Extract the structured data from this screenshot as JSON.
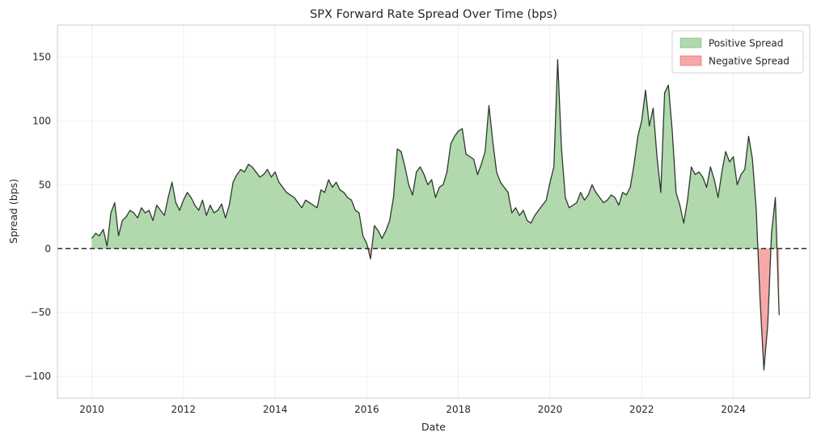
{
  "chart_data": {
    "type": "area",
    "title": "SPX Forward Rate Spread Over Time (bps)",
    "xlabel": "Date",
    "ylabel": "Spread (bps)",
    "xlim": [
      "2009-04",
      "2025-09"
    ],
    "ylim": [
      -117,
      175
    ],
    "x_ticks": [
      "2010",
      "2012",
      "2014",
      "2016",
      "2018",
      "2020",
      "2022",
      "2024"
    ],
    "y_ticks": [
      -100,
      -50,
      0,
      50,
      100,
      150
    ],
    "grid": true,
    "zero_line": {
      "value": 0,
      "style": "dashed"
    },
    "legend": {
      "position": "top-right",
      "entries": [
        {
          "label": "Positive Spread",
          "color": "#2ca02c"
        },
        {
          "label": "Negative Spread",
          "color": "#ff0000"
        }
      ]
    },
    "colors": {
      "line": "#2b3a2b",
      "positive_fill": "#b2d8ad",
      "negative_fill": "#f7a8a8"
    },
    "series": [
      {
        "x": [
          "2010-01",
          "2010-02",
          "2010-03",
          "2010-04",
          "2010-05",
          "2010-06",
          "2010-07",
          "2010-08",
          "2010-09",
          "2010-10",
          "2010-11",
          "2010-12",
          "2011-01",
          "2011-02",
          "2011-03",
          "2011-04",
          "2011-05",
          "2011-06",
          "2011-07",
          "2011-08",
          "2011-09",
          "2011-10",
          "2011-11",
          "2011-12",
          "2012-01",
          "2012-02",
          "2012-03",
          "2012-04",
          "2012-05",
          "2012-06",
          "2012-07",
          "2012-08",
          "2012-09",
          "2012-10",
          "2012-11",
          "2012-12",
          "2013-01",
          "2013-02",
          "2013-03",
          "2013-04",
          "2013-05",
          "2013-06",
          "2013-07",
          "2013-08",
          "2013-09",
          "2013-10",
          "2013-11",
          "2013-12",
          "2014-01",
          "2014-02",
          "2014-03",
          "2014-04",
          "2014-05",
          "2014-06",
          "2014-07",
          "2014-08",
          "2014-09",
          "2014-10",
          "2014-11",
          "2014-12",
          "2015-01",
          "2015-02",
          "2015-03",
          "2015-04",
          "2015-05",
          "2015-06",
          "2015-07",
          "2015-08",
          "2015-09",
          "2015-10",
          "2015-11",
          "2015-12",
          "2016-01",
          "2016-02",
          "2016-03",
          "2016-04",
          "2016-05",
          "2016-06",
          "2016-07",
          "2016-08",
          "2016-09",
          "2016-10",
          "2016-11",
          "2016-12",
          "2017-01",
          "2017-02",
          "2017-03",
          "2017-04",
          "2017-05",
          "2017-06",
          "2017-07",
          "2017-08",
          "2017-09",
          "2017-10",
          "2017-11",
          "2017-12",
          "2018-01",
          "2018-02",
          "2018-03",
          "2018-04",
          "2018-05",
          "2018-06",
          "2018-07",
          "2018-08",
          "2018-09",
          "2018-10",
          "2018-11",
          "2018-12",
          "2019-01",
          "2019-02",
          "2019-03",
          "2019-04",
          "2019-05",
          "2019-06",
          "2019-07",
          "2019-08",
          "2019-09",
          "2019-10",
          "2019-11",
          "2019-12",
          "2020-01",
          "2020-02",
          "2020-03",
          "2020-04",
          "2020-05",
          "2020-06",
          "2020-07",
          "2020-08",
          "2020-09",
          "2020-10",
          "2020-11",
          "2020-12",
          "2021-01",
          "2021-02",
          "2021-03",
          "2021-04",
          "2021-05",
          "2021-06",
          "2021-07",
          "2021-08",
          "2021-09",
          "2021-10",
          "2021-11",
          "2021-12",
          "2022-01",
          "2022-02",
          "2022-03",
          "2022-04",
          "2022-05",
          "2022-06",
          "2022-07",
          "2022-08",
          "2022-09",
          "2022-10",
          "2022-11",
          "2022-12",
          "2023-01",
          "2023-02",
          "2023-03",
          "2023-04",
          "2023-05",
          "2023-06",
          "2023-07",
          "2023-08",
          "2023-09",
          "2023-10",
          "2023-11",
          "2023-12",
          "2024-01",
          "2024-02",
          "2024-03",
          "2024-04",
          "2024-05",
          "2024-06",
          "2024-07",
          "2024-08",
          "2024-09",
          "2024-10",
          "2024-11",
          "2024-12",
          "2025-01"
        ],
        "y": [
          8,
          12,
          10,
          15,
          2,
          28,
          36,
          10,
          22,
          25,
          30,
          28,
          24,
          32,
          28,
          30,
          22,
          34,
          30,
          26,
          40,
          52,
          36,
          30,
          38,
          44,
          40,
          34,
          30,
          38,
          26,
          34,
          28,
          30,
          35,
          24,
          34,
          52,
          58,
          62,
          60,
          66,
          64,
          60,
          56,
          58,
          62,
          56,
          60,
          52,
          48,
          44,
          42,
          40,
          36,
          32,
          38,
          36,
          34,
          32,
          46,
          44,
          54,
          48,
          52,
          46,
          44,
          40,
          38,
          30,
          28,
          10,
          4,
          -8,
          18,
          14,
          8,
          14,
          22,
          40,
          78,
          76,
          64,
          50,
          42,
          60,
          64,
          58,
          50,
          54,
          40,
          48,
          50,
          60,
          82,
          88,
          92,
          94,
          74,
          72,
          70,
          58,
          66,
          76,
          112,
          84,
          60,
          52,
          48,
          44,
          28,
          32,
          26,
          30,
          22,
          20,
          26,
          30,
          34,
          38,
          52,
          64,
          148,
          78,
          40,
          32,
          34,
          36,
          44,
          38,
          42,
          50,
          44,
          40,
          36,
          38,
          42,
          40,
          34,
          44,
          42,
          48,
          66,
          88,
          100,
          124,
          96,
          110,
          72,
          44,
          122,
          128,
          92,
          44,
          34,
          20,
          38,
          64,
          58,
          60,
          56,
          48,
          64,
          54,
          40,
          60,
          76,
          68,
          72,
          50,
          58,
          62,
          88,
          70,
          30,
          -40,
          -95,
          -60,
          12,
          40,
          -52
        ]
      }
    ]
  }
}
